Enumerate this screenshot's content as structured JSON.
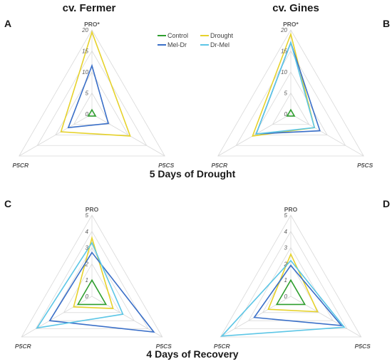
{
  "column_titles": [
    "cv. Fermer",
    "cv. Gines"
  ],
  "row_titles": [
    "5 Days of Drought",
    "4 Days of Recovery"
  ],
  "legend": [
    {
      "name": "Control",
      "color": "#2e9e2e"
    },
    {
      "name": "Drought",
      "color": "#e6d22c"
    },
    {
      "name": "Mel-Dr",
      "color": "#3a6fc8"
    },
    {
      "name": "Dr-Mel",
      "color": "#5cc6e6"
    }
  ],
  "chart_data": [
    {
      "panel": "A",
      "type": "radar",
      "axes": [
        "PRO*",
        "P5CS",
        "P5CR"
      ],
      "rmax": 20,
      "ticks": [
        0,
        5,
        10,
        15,
        20
      ],
      "series": [
        {
          "name": "Control",
          "values": [
            1,
            1,
            1
          ]
        },
        {
          "name": "Drought",
          "values": [
            19.5,
            10.5,
            8.5
          ]
        },
        {
          "name": "Mel-Dr",
          "values": [
            11.5,
            4.5,
            6.5
          ]
        },
        {
          "name": "Dr-Mel",
          "values": [
            null,
            null,
            null
          ]
        }
      ]
    },
    {
      "panel": "B",
      "type": "radar",
      "axes": [
        "PRO*",
        "P5CS",
        "P5CR"
      ],
      "rmax": 20,
      "ticks": [
        0,
        5,
        10,
        15,
        20
      ],
      "series": [
        {
          "name": "Control",
          "values": [
            1,
            1,
            1
          ]
        },
        {
          "name": "Drought",
          "values": [
            19,
            6.5,
            10.5
          ]
        },
        {
          "name": "Mel-Dr",
          "values": [
            17,
            8,
            9.5
          ]
        },
        {
          "name": "Dr-Mel",
          "values": [
            17,
            6.5,
            9.5
          ]
        }
      ]
    },
    {
      "panel": "C",
      "type": "radar",
      "axes": [
        "PRO",
        "P5CS",
        "P5CR"
      ],
      "rmax": 5,
      "ticks": [
        0,
        1,
        2,
        3,
        4,
        5
      ],
      "series": [
        {
          "name": "Control",
          "values": [
            1,
            1,
            1
          ]
        },
        {
          "name": "Drought",
          "values": [
            3.6,
            1.5,
            1.3
          ]
        },
        {
          "name": "Mel-Dr",
          "values": [
            2.7,
            4.4,
            3.0
          ]
        },
        {
          "name": "Dr-Mel",
          "values": [
            3.3,
            2.2,
            3.9
          ]
        }
      ]
    },
    {
      "panel": "D",
      "type": "radar",
      "axes": [
        "PRO",
        "P5CS",
        "P5CR"
      ],
      "rmax": 5,
      "ticks": [
        0,
        1,
        2,
        3,
        4,
        5
      ],
      "series": [
        {
          "name": "Control",
          "values": [
            1,
            1,
            1
          ]
        },
        {
          "name": "Drought",
          "values": [
            2.6,
            1.9,
            1.6
          ]
        },
        {
          "name": "Mel-Dr",
          "values": [
            1.9,
            3.6,
            2.6
          ]
        },
        {
          "name": "Dr-Mel",
          "values": [
            2.2,
            3.8,
            4.9
          ]
        }
      ]
    }
  ]
}
